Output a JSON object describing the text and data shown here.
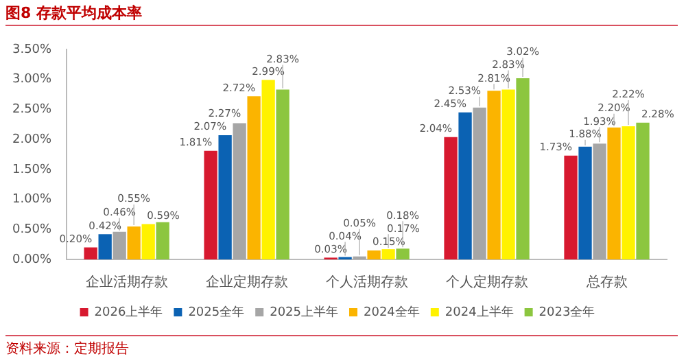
{
  "chart_data": {
    "type": "bar",
    "title": "图8 存款平均成本率",
    "categories": [
      "企业活期存款",
      "企业定期存款",
      "个人活期存款",
      "个人定期存款",
      "总存款"
    ],
    "series": [
      {
        "name": "2026上半年",
        "color": "#d7192f",
        "values": [
          0.2,
          1.81,
          0.03,
          2.04,
          1.73
        ],
        "value_labels": [
          "0.20%",
          "1.81%",
          "0.03%",
          "2.04%",
          "1.73%"
        ]
      },
      {
        "name": "2025全年",
        "color": "#0b62b3",
        "values": [
          0.42,
          2.07,
          0.04,
          2.45,
          1.88
        ],
        "value_labels": [
          "0.42%",
          "2.07%",
          "0.04%",
          "2.45%",
          "1.88%"
        ]
      },
      {
        "name": "2025上半年",
        "color": "#a6a6a6",
        "values": [
          0.46,
          2.27,
          0.05,
          2.53,
          1.93
        ],
        "value_labels": [
          "0.46%",
          "2.27%",
          "0.05%",
          "2.53%",
          "1.93%"
        ]
      },
      {
        "name": "2024全年",
        "color": "#fbb400",
        "values": [
          0.55,
          2.72,
          0.15,
          2.81,
          2.2
        ],
        "value_labels": [
          "0.55%",
          "2.72%",
          "0.15%",
          "2.81%",
          "2.20%"
        ]
      },
      {
        "name": "2024上半年",
        "color": "#fff200",
        "values": [
          0.59,
          2.99,
          0.17,
          2.83,
          2.22
        ],
        "value_labels": [
          "0.59%",
          "2.99%",
          "0.17%",
          "2.83%",
          "2.22%"
        ]
      },
      {
        "name": "2023全年",
        "color": "#8cc63f",
        "values": [
          0.62,
          2.83,
          0.18,
          3.02,
          2.28
        ],
        "value_labels": [
          null,
          "2.83%",
          "0.18%",
          "3.02%",
          "2.28%"
        ]
      }
    ],
    "ylim": [
      0,
      3.5
    ],
    "yticks": [
      {
        "value": 0,
        "label": "0.00%"
      },
      {
        "value": 0.5,
        "label": "0.50%"
      },
      {
        "value": 1,
        "label": "1.00%"
      },
      {
        "value": 1.5,
        "label": "1.50%"
      },
      {
        "value": 2,
        "label": "2.00%"
      },
      {
        "value": 2.5,
        "label": "2.50%"
      },
      {
        "value": 3,
        "label": "3.00%"
      },
      {
        "value": 3.5,
        "label": "3.50%"
      }
    ],
    "grid": false,
    "legend": "bottom",
    "annotations": [
      "资料来源：定期报告"
    ]
  }
}
